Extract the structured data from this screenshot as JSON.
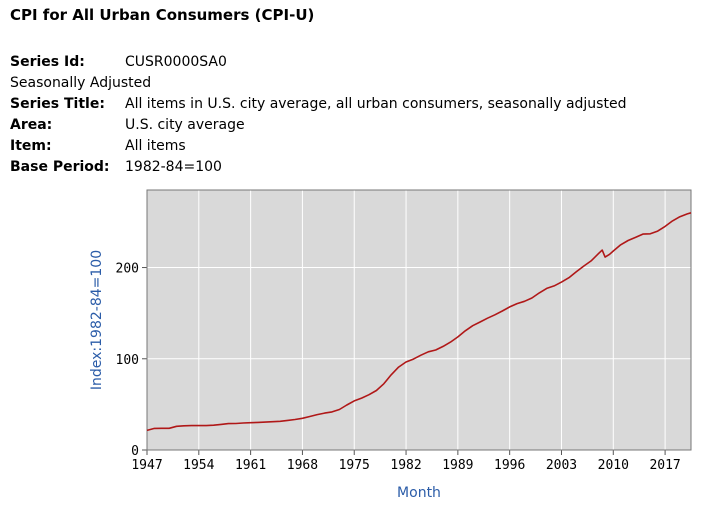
{
  "header": {
    "title": "CPI for All Urban Consumers (CPI-U)"
  },
  "meta": {
    "series_id_label": "Series Id:",
    "series_id_value": "CUSR0000SA0",
    "adjustment": "Seasonally Adjusted",
    "series_title_label": "Series Title:",
    "series_title_value": "All items in U.S. city average, all urban consumers, seasonally adjusted",
    "area_label": "Area:",
    "area_value": "U.S. city average",
    "item_label": "Item:",
    "item_value": "All items",
    "base_label": "Base Period:",
    "base_value": "1982-84=100"
  },
  "colors": {
    "plot_bg": "#d9d9d9",
    "grid": "#ffffff",
    "line": "#b01818",
    "axis_title": "#2b5ca8"
  },
  "chart_data": {
    "type": "line",
    "xlabel": "Month",
    "ylabel": "Index:1982-84=100",
    "xlim": [
      1947,
      2020.5
    ],
    "ylim": [
      0,
      285
    ],
    "grid": true,
    "x_ticks": [
      1947,
      1954,
      1961,
      1968,
      1975,
      1982,
      1989,
      1996,
      2003,
      2010,
      2017
    ],
    "y_ticks": [
      0,
      100,
      200
    ],
    "series": [
      {
        "points": [
          [
            1947.0,
            21.5
          ],
          [
            1948.0,
            23.7
          ],
          [
            1949.0,
            23.8
          ],
          [
            1950.0,
            23.8
          ],
          [
            1951.0,
            26.0
          ],
          [
            1952.0,
            26.5
          ],
          [
            1953.0,
            26.7
          ],
          [
            1954.0,
            26.8
          ],
          [
            1955.0,
            26.8
          ],
          [
            1956.0,
            27.2
          ],
          [
            1957.0,
            28.1
          ],
          [
            1958.0,
            28.9
          ],
          [
            1959.0,
            29.1
          ],
          [
            1960.0,
            29.6
          ],
          [
            1961.0,
            29.9
          ],
          [
            1962.0,
            30.2
          ],
          [
            1963.0,
            30.6
          ],
          [
            1964.0,
            31.0
          ],
          [
            1965.0,
            31.5
          ],
          [
            1966.0,
            32.4
          ],
          [
            1967.0,
            33.4
          ],
          [
            1968.0,
            34.8
          ],
          [
            1969.0,
            36.7
          ],
          [
            1970.0,
            38.8
          ],
          [
            1971.0,
            40.5
          ],
          [
            1972.0,
            41.8
          ],
          [
            1973.0,
            44.4
          ],
          [
            1974.0,
            49.3
          ],
          [
            1975.0,
            53.8
          ],
          [
            1976.0,
            56.9
          ],
          [
            1977.0,
            60.6
          ],
          [
            1978.0,
            65.2
          ],
          [
            1979.0,
            72.6
          ],
          [
            1980.0,
            82.4
          ],
          [
            1981.0,
            90.9
          ],
          [
            1982.0,
            96.5
          ],
          [
            1983.0,
            99.6
          ],
          [
            1984.0,
            103.9
          ],
          [
            1985.0,
            107.6
          ],
          [
            1986.0,
            109.6
          ],
          [
            1987.0,
            113.6
          ],
          [
            1988.0,
            118.3
          ],
          [
            1989.0,
            124.0
          ],
          [
            1990.0,
            130.7
          ],
          [
            1991.0,
            136.2
          ],
          [
            1992.0,
            140.3
          ],
          [
            1993.0,
            144.5
          ],
          [
            1994.0,
            148.2
          ],
          [
            1995.0,
            152.4
          ],
          [
            1996.0,
            156.9
          ],
          [
            1997.0,
            160.5
          ],
          [
            1998.0,
            163.0
          ],
          [
            1999.0,
            166.6
          ],
          [
            2000.0,
            172.2
          ],
          [
            2001.0,
            177.1
          ],
          [
            2002.0,
            179.9
          ],
          [
            2003.0,
            184.0
          ],
          [
            2004.0,
            188.9
          ],
          [
            2005.0,
            195.3
          ],
          [
            2006.0,
            201.6
          ],
          [
            2007.0,
            207.3
          ],
          [
            2008.0,
            215.3
          ],
          [
            2008.5,
            219.1
          ],
          [
            2008.9,
            211.4
          ],
          [
            2009.5,
            214.5
          ],
          [
            2010.0,
            218.1
          ],
          [
            2011.0,
            224.9
          ],
          [
            2012.0,
            229.6
          ],
          [
            2013.0,
            233.0
          ],
          [
            2014.0,
            236.7
          ],
          [
            2015.0,
            237.0
          ],
          [
            2016.0,
            240.0
          ],
          [
            2017.0,
            245.1
          ],
          [
            2018.0,
            251.1
          ],
          [
            2019.0,
            255.7
          ],
          [
            2020.0,
            258.8
          ],
          [
            2020.5,
            260.0
          ]
        ]
      }
    ]
  }
}
